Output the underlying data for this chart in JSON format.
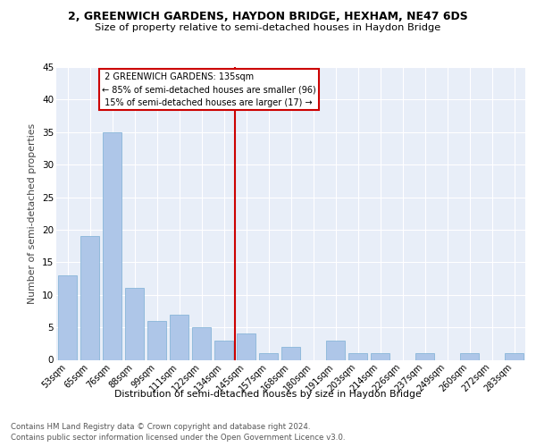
{
  "title": "2, GREENWICH GARDENS, HAYDON BRIDGE, HEXHAM, NE47 6DS",
  "subtitle": "Size of property relative to semi-detached houses in Haydon Bridge",
  "xlabel": "Distribution of semi-detached houses by size in Haydon Bridge",
  "ylabel": "Number of semi-detached properties",
  "categories": [
    "53sqm",
    "65sqm",
    "76sqm",
    "88sqm",
    "99sqm",
    "111sqm",
    "122sqm",
    "134sqm",
    "145sqm",
    "157sqm",
    "168sqm",
    "180sqm",
    "191sqm",
    "203sqm",
    "214sqm",
    "226sqm",
    "237sqm",
    "249sqm",
    "260sqm",
    "272sqm",
    "283sqm"
  ],
  "values": [
    13,
    19,
    35,
    11,
    6,
    7,
    5,
    3,
    4,
    1,
    2,
    0,
    3,
    1,
    1,
    0,
    1,
    0,
    1,
    0,
    1
  ],
  "bar_color": "#aec6e8",
  "bar_edge_color": "#7bafd4",
  "property_label": "2 GREENWICH GARDENS: 135sqm",
  "pct_smaller": 85,
  "count_smaller": 96,
  "pct_larger": 15,
  "count_larger": 17,
  "vline_index": 7,
  "vline_color": "#cc0000",
  "annotation_box_color": "#cc0000",
  "background_color": "#e8eef8",
  "grid_color": "#ffffff",
  "ylim": [
    0,
    45
  ],
  "yticks": [
    0,
    5,
    10,
    15,
    20,
    25,
    30,
    35,
    40,
    45
  ],
  "footer_line1": "Contains HM Land Registry data © Crown copyright and database right 2024.",
  "footer_line2": "Contains public sector information licensed under the Open Government Licence v3.0."
}
